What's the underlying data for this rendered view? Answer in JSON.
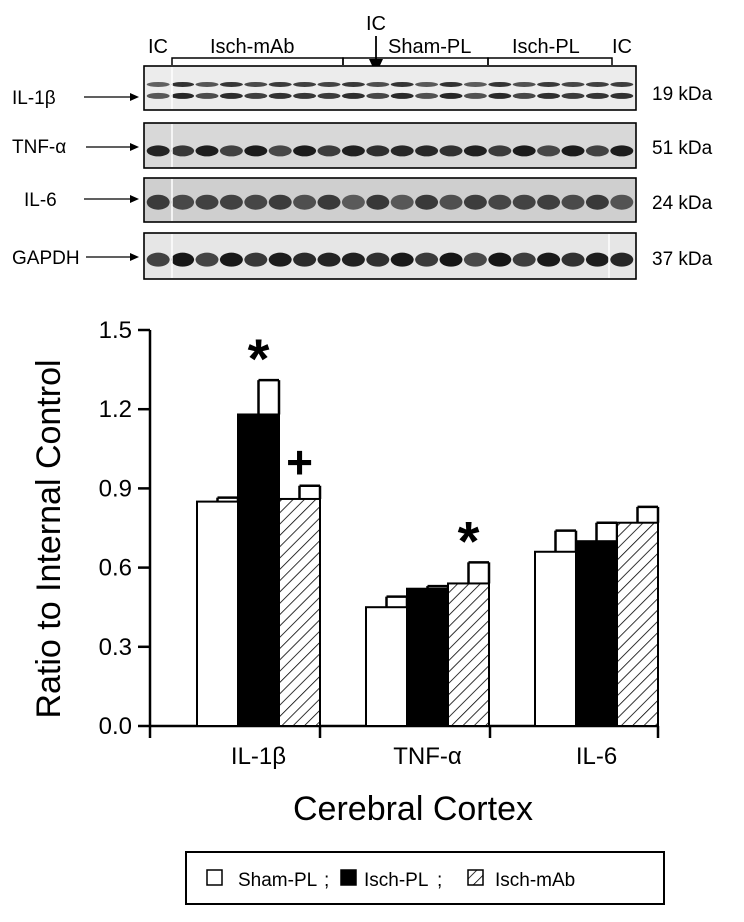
{
  "blot": {
    "lane_labels": [
      "IC",
      "Isch-mAb",
      "IC",
      "Sham-PL",
      "Isch-PL",
      "IC"
    ],
    "rows": [
      {
        "name": "IL-1β",
        "size": "19 kDa"
      },
      {
        "name": "TNF-α",
        "size": "51 kDa"
      },
      {
        "name": "IL-6",
        "size": "24 kDa"
      },
      {
        "name": "GAPDH",
        "size": "37 kDa"
      }
    ]
  },
  "chart_data": {
    "type": "bar",
    "categories": [
      "IL-1β",
      "TNF-α",
      "IL-6"
    ],
    "series": [
      {
        "name": "Sham-PL",
        "values": [
          0.85,
          0.45,
          0.66
        ],
        "errors": [
          0.015,
          0.04,
          0.08
        ],
        "fill": "#ffffff"
      },
      {
        "name": "Isch-PL",
        "values": [
          1.18,
          0.52,
          0.7
        ],
        "errors": [
          0.13,
          0.01,
          0.07
        ],
        "fill": "#000000"
      },
      {
        "name": "Isch-mAb",
        "values": [
          0.86,
          0.54,
          0.77
        ],
        "errors": [
          0.05,
          0.08,
          0.06
        ],
        "fill": "hatch"
      }
    ],
    "annotations": [
      {
        "category": "IL-1β",
        "series": "Isch-PL",
        "text": "*"
      },
      {
        "category": "IL-1β",
        "series": "Isch-mAb",
        "text": "+"
      },
      {
        "category": "TNF-α",
        "series": "Isch-mAb",
        "text": "*"
      }
    ],
    "ylabel": "Ratio to Internal Control",
    "xlabel": "Cerebral Cortex",
    "ylim": [
      0,
      1.5
    ],
    "yticks": [
      "0.0",
      "0.3",
      "0.6",
      "0.9",
      "1.2",
      "1.5"
    ],
    "legend_position": "bottom",
    "grid": false
  }
}
